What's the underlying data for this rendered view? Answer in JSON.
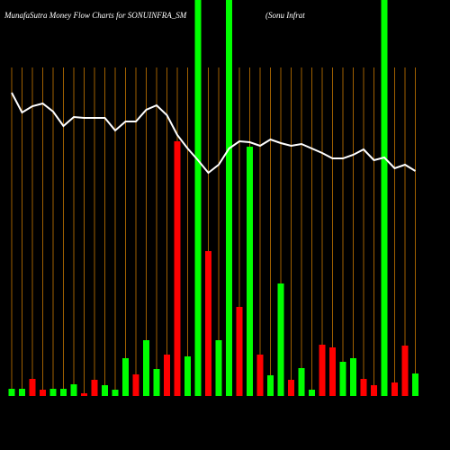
{
  "chart_data": {
    "type": "bar",
    "title": "MunafaSutra  Money Flow  Charts for SONUINFRA_SM",
    "subtitle": "(Sonu   Infrat",
    "ylim": [
      0,
      440
    ],
    "values": [
      8,
      8,
      19,
      7,
      8,
      8,
      13,
      3,
      18,
      12,
      7,
      42,
      24,
      62,
      30,
      46,
      283,
      44,
      440,
      161,
      62,
      440,
      99,
      277,
      46,
      23,
      125,
      18,
      31,
      7,
      57,
      54,
      38,
      42,
      19,
      12,
      440,
      15,
      56,
      25
    ],
    "colors": [
      "#00ff00",
      "#00ff00",
      "#ff0000",
      "#ff0000",
      "#00ff00",
      "#00ff00",
      "#00ff00",
      "#ff0000",
      "#ff0000",
      "#00ff00",
      "#00ff00",
      "#00ff00",
      "#ff0000",
      "#00ff00",
      "#00ff00",
      "#ff0000",
      "#ff0000",
      "#00ff00",
      "#00ff00",
      "#ff0000",
      "#00ff00",
      "#00ff00",
      "#ff0000",
      "#00ff00",
      "#ff0000",
      "#00ff00",
      "#00ff00",
      "#ff0000",
      "#00ff00",
      "#00ff00",
      "#ff0000",
      "#ff0000",
      "#00ff00",
      "#00ff00",
      "#ff0000",
      "#ff0000",
      "#00ff00",
      "#ff0000",
      "#ff0000",
      "#00ff00"
    ],
    "line": {
      "color": "#ffffff",
      "values": [
        337,
        315,
        322,
        325,
        316,
        300,
        310,
        309,
        309,
        309,
        295,
        305,
        305,
        318,
        323,
        312,
        290,
        275,
        262,
        248,
        257,
        275,
        283,
        282,
        278,
        285,
        281,
        278,
        280,
        275,
        270,
        264,
        264,
        268,
        274,
        262,
        265,
        253,
        257,
        250
      ]
    },
    "gridline_color": "#c87800"
  }
}
